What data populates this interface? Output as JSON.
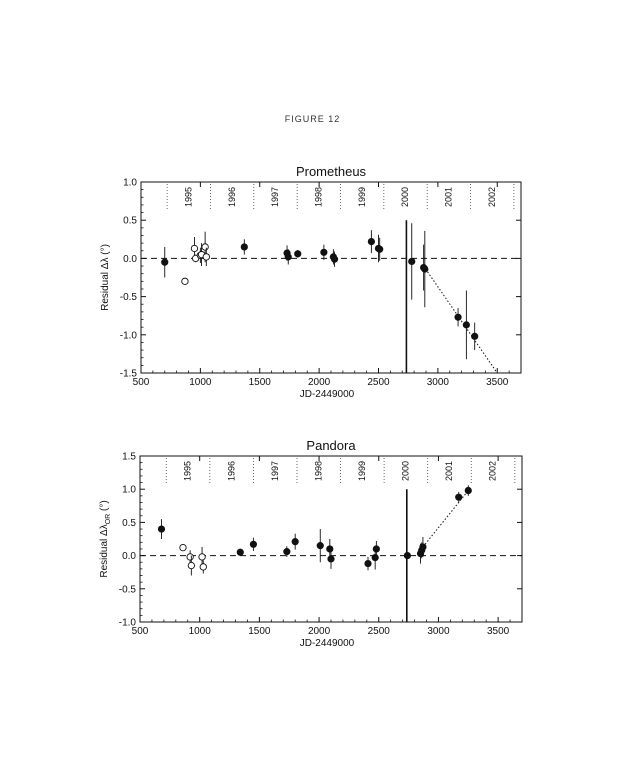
{
  "figure_label": "FIGURE 12",
  "chart_data": [
    {
      "type": "scatter",
      "title": "Prometheus",
      "xlabel": "JD-2449000",
      "ylabel": "Residual Δλ (°)",
      "xlim": [
        500,
        3700
      ],
      "ylim": [
        -1.5,
        1.0
      ],
      "xticks": [
        500,
        1000,
        1500,
        2000,
        2500,
        3000,
        3500
      ],
      "yticks": [
        1.0,
        0.5,
        0.0,
        -0.5,
        -1.0,
        -1.5
      ],
      "ytick_labels": [
        "1.0",
        "0.5",
        "0.0",
        "-0.5",
        "-1.0",
        "-1.5"
      ],
      "year_labels": [
        "1995",
        "1996",
        "1997",
        "1998",
        "1999",
        "2000",
        "2001",
        "2002"
      ],
      "year_label_x": [
        905,
        1270,
        1635,
        2000,
        2365,
        2730,
        3095,
        3460
      ],
      "year_boundaries": [
        720,
        1085,
        1450,
        1815,
        2180,
        2545,
        2910,
        3275,
        3640
      ],
      "series": [
        {
          "marker": "filled",
          "x": [
            700,
            1370,
            1730,
            1740,
            1820,
            2040,
            2120,
            2130,
            2440,
            2500,
            2510,
            2780,
            2880,
            2890,
            3170,
            3240,
            3310
          ],
          "y": [
            -0.05,
            0.15,
            0.07,
            0.02,
            0.06,
            0.08,
            0.02,
            -0.01,
            0.22,
            0.13,
            0.12,
            -0.04,
            -0.12,
            -0.14,
            -0.77,
            -0.87,
            -1.02
          ],
          "err": [
            0.2,
            0.1,
            0.1,
            0.1,
            0.05,
            0.1,
            0.1,
            0.1,
            0.15,
            0.18,
            0.15,
            0.5,
            0.3,
            0.5,
            0.12,
            0.45,
            0.18
          ]
        },
        {
          "marker": "open",
          "x": [
            870,
            950,
            960,
            1000,
            1010,
            1040,
            1050
          ],
          "y": [
            -0.3,
            0.13,
            0.0,
            0.04,
            0.05,
            0.15,
            0.02
          ],
          "err": [
            0.03,
            0.15,
            0.05,
            0.1,
            0.15,
            0.2,
            0.12
          ]
        }
      ],
      "trend": {
        "x": [
          2880,
          3500
        ],
        "y": [
          -0.1,
          -1.5
        ]
      },
      "vline_x": 2735,
      "vline_y": [
        -1.5,
        0.5
      ]
    },
    {
      "type": "scatter",
      "title": "Pandora",
      "xlabel": "JD-2449000",
      "ylabel": "Residual Δλ",
      "ylabel_sub": "OR",
      "ylabel_unit": "(°)",
      "xlim": [
        500,
        3700
      ],
      "ylim": [
        -1.0,
        1.5
      ],
      "xticks": [
        500,
        1000,
        1500,
        2000,
        2500,
        3000,
        3500
      ],
      "yticks": [
        1.5,
        1.0,
        0.5,
        0.0,
        -0.5,
        -1.0
      ],
      "ytick_labels": [
        "1.5",
        "1.0",
        "0.5",
        "0.0",
        "-0.5",
        "-1.0"
      ],
      "year_labels": [
        "1995",
        "1996",
        "1997",
        "1998",
        "1999",
        "2000",
        "2001",
        "2002"
      ],
      "year_label_x": [
        905,
        1270,
        1635,
        2000,
        2365,
        2730,
        3095,
        3460
      ],
      "year_boundaries": [
        720,
        1085,
        1450,
        1815,
        2180,
        2545,
        2910,
        3275,
        3640
      ],
      "series": [
        {
          "marker": "filled",
          "x": [
            680,
            1340,
            1450,
            1730,
            1800,
            2010,
            2090,
            2100,
            2410,
            2470,
            2480,
            2740,
            2850,
            2860,
            2870,
            3170,
            3250
          ],
          "y": [
            0.4,
            0.05,
            0.17,
            0.06,
            0.21,
            0.15,
            0.1,
            -0.05,
            -0.12,
            -0.03,
            0.1,
            0.0,
            0.03,
            0.08,
            0.13,
            0.88,
            0.98
          ],
          "err": [
            0.15,
            0.05,
            0.1,
            0.08,
            0.12,
            0.25,
            0.15,
            0.15,
            0.1,
            0.18,
            0.12,
            0.05,
            0.15,
            0.12,
            0.15,
            0.08,
            0.08
          ]
        },
        {
          "marker": "open",
          "x": [
            860,
            920,
            930,
            1020,
            1030
          ],
          "y": [
            0.12,
            -0.02,
            -0.15,
            -0.02,
            -0.17
          ],
          "err": [
            0.05,
            0.1,
            0.15,
            0.15,
            0.1
          ]
        }
      ],
      "trend": {
        "x": [
          2870,
          3250
        ],
        "y": [
          0.13,
          0.98
        ]
      },
      "vline_x": 2735,
      "vline_y": [
        -1.0,
        1.0
      ]
    }
  ]
}
